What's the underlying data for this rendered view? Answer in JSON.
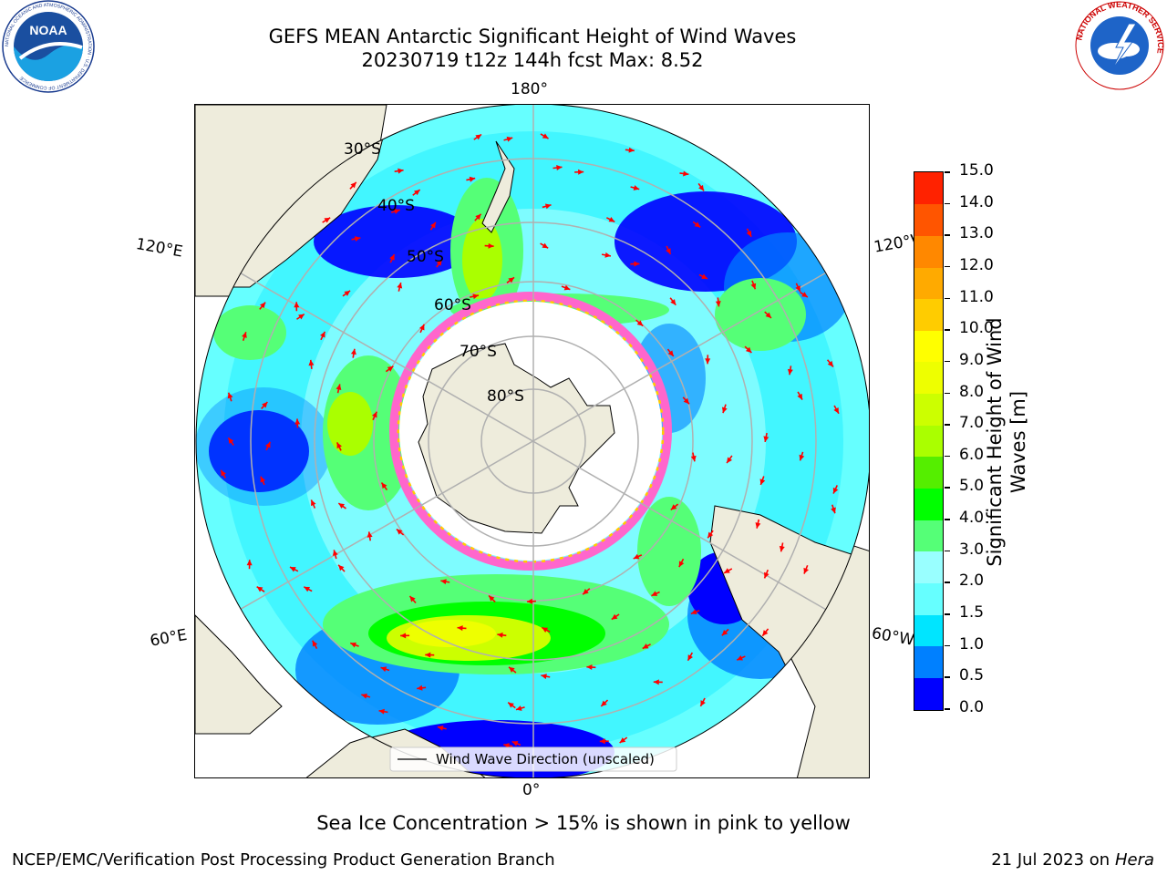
{
  "header": {
    "title_line1": "GEFS MEAN Antarctic Significant Height of Wind Waves",
    "title_line2": "20230719 t12z 144h fcst   Max: 8.52"
  },
  "logos": {
    "left": {
      "icon": "noaa-logo",
      "text": "NOAA",
      "ring_text": "NATIONAL OCEANIC AND ATMOSPHERIC ADMINISTRATION · U.S. DEPARTMENT OF COMMERCE"
    },
    "right": {
      "icon": "nws-logo",
      "ring_text": "NATIONAL WEATHER SERVICE"
    }
  },
  "map": {
    "projection": "south-polar-stereographic",
    "longitude_labels": {
      "top": "180°",
      "bottom": "0°",
      "left_upper": "120°E",
      "left_lower": "60°E",
      "right_upper": "120°W",
      "right_lower": "60°W"
    },
    "latitude_labels": [
      "30°S",
      "40°S",
      "50°S",
      "60°S",
      "70°S",
      "80°S"
    ],
    "legend": "Wind Wave Direction (unscaled)",
    "arrow_color": "#ff0000",
    "land_color": "#eeecdc",
    "ice_colors": [
      "#ff66cc",
      "#ffcc00"
    ]
  },
  "colorbar": {
    "label": "Significant Height of Wind Waves [m]",
    "label_line1": "Significant Height of Wind",
    "label_line2": "Waves [m]",
    "ticks": [
      "0.0",
      "0.5",
      "1.0",
      "1.5",
      "2.0",
      "3.0",
      "4.0",
      "5.0",
      "6.0",
      "7.0",
      "8.0",
      "9.0",
      "10.0",
      "11.0",
      "12.0",
      "13.0",
      "14.0",
      "15.0"
    ],
    "colors": [
      "#0000ff",
      "#0080ff",
      "#00e5ff",
      "#66ffff",
      "#99ffff",
      "#55ff77",
      "#00ff00",
      "#55ee00",
      "#aaff00",
      "#ccff00",
      "#eeff00",
      "#ffff00",
      "#ffcc00",
      "#ffaa00",
      "#ff8800",
      "#ff5500",
      "#ff2200"
    ]
  },
  "caption": "Sea Ice Concentration > 15% is shown in pink to yellow",
  "footer": {
    "left": "NCEP/EMC/Verification Post Processing Product Generation Branch",
    "right_prefix": "21 Jul 2023 on ",
    "right_machine": "Hera"
  }
}
